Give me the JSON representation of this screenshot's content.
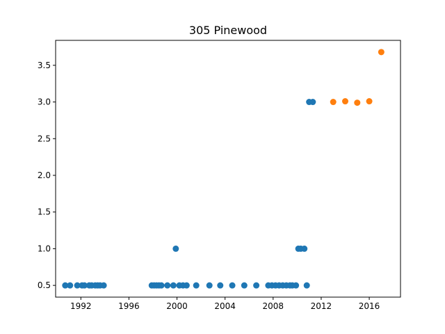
{
  "chart_data": {
    "type": "scatter",
    "title": "305 Pinewood",
    "xlabel": "",
    "ylabel": "",
    "xlim": [
      1989.9,
      2018.6
    ],
    "ylim": [
      0.34,
      3.84
    ],
    "x_ticks": [
      1992,
      1996,
      2000,
      2004,
      2008,
      2012,
      2016
    ],
    "x_tick_labels": [
      "1992",
      "1996",
      "2000",
      "2004",
      "2008",
      "2012",
      "2016"
    ],
    "y_ticks": [
      0.5,
      1.0,
      1.5,
      2.0,
      2.5,
      3.0,
      3.5
    ],
    "y_tick_labels": [
      "0.5",
      "1.0",
      "1.5",
      "2.0",
      "2.5",
      "3.0",
      "3.5"
    ],
    "grid": false,
    "series": [
      {
        "color": "#1f77b4",
        "points": [
          [
            1990.7,
            0.5
          ],
          [
            1991.1,
            0.5
          ],
          [
            1991.7,
            0.5
          ],
          [
            1992.1,
            0.5
          ],
          [
            1992.3,
            0.5
          ],
          [
            1992.7,
            0.5
          ],
          [
            1992.9,
            0.5
          ],
          [
            1993.2,
            0.5
          ],
          [
            1993.4,
            0.5
          ],
          [
            1993.6,
            0.5
          ],
          [
            1993.9,
            0.5
          ],
          [
            1997.9,
            0.5
          ],
          [
            1998.1,
            0.5
          ],
          [
            1998.3,
            0.5
          ],
          [
            1998.5,
            0.5
          ],
          [
            1998.7,
            0.5
          ],
          [
            1999.2,
            0.5
          ],
          [
            1999.7,
            0.5
          ],
          [
            1999.9,
            1.0
          ],
          [
            2000.2,
            0.5
          ],
          [
            2000.5,
            0.5
          ],
          [
            2000.8,
            0.5
          ],
          [
            2001.6,
            0.5
          ],
          [
            2002.7,
            0.5
          ],
          [
            2003.6,
            0.5
          ],
          [
            2004.6,
            0.5
          ],
          [
            2005.6,
            0.5
          ],
          [
            2006.6,
            0.5
          ],
          [
            2007.6,
            0.5
          ],
          [
            2007.9,
            0.5
          ],
          [
            2008.2,
            0.5
          ],
          [
            2008.5,
            0.5
          ],
          [
            2008.8,
            0.5
          ],
          [
            2009.1,
            0.5
          ],
          [
            2009.4,
            0.5
          ],
          [
            2009.6,
            0.5
          ],
          [
            2009.9,
            0.5
          ],
          [
            2010.1,
            1.0
          ],
          [
            2010.3,
            1.0
          ],
          [
            2010.6,
            1.0
          ],
          [
            2010.8,
            0.5
          ],
          [
            2011.0,
            3.0
          ],
          [
            2011.3,
            3.0
          ]
        ]
      },
      {
        "color": "#ff7f0e",
        "points": [
          [
            2013.0,
            3.0
          ],
          [
            2014.0,
            3.01
          ],
          [
            2015.0,
            2.99
          ],
          [
            2016.0,
            3.01
          ],
          [
            2017.0,
            3.68
          ]
        ]
      }
    ]
  }
}
